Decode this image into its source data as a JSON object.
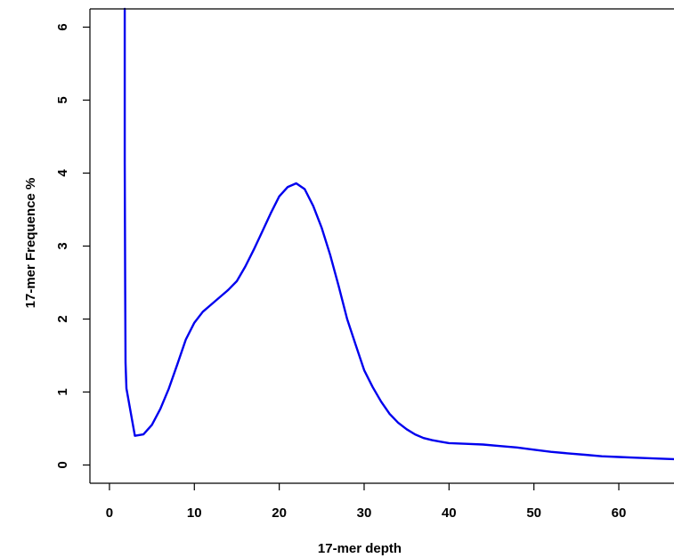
{
  "chart_data": {
    "type": "line",
    "title": "",
    "xlabel": "17-mer depth",
    "ylabel": "17-mer Frequence %",
    "xlim": [
      -2.3,
      66.5
    ],
    "ylim": [
      -0.25,
      6.25
    ],
    "xticks": [
      0,
      10,
      20,
      30,
      40,
      50,
      60
    ],
    "yticks": [
      0,
      1,
      2,
      3,
      4,
      5,
      6
    ],
    "grid": false,
    "legend": "none",
    "line_color": "#0000ee",
    "series": [
      {
        "x": [
          1.8,
          1.8,
          1.85,
          1.9,
          2.0,
          3.0,
          4.0,
          5,
          6,
          7,
          8,
          9,
          10,
          11,
          12,
          13,
          14,
          15,
          16,
          17,
          18,
          19,
          20,
          21,
          22,
          23,
          24,
          25,
          26,
          27,
          28,
          29,
          30,
          31,
          32,
          33,
          34,
          35,
          36,
          37,
          38,
          39,
          40,
          42,
          44,
          46,
          48,
          50,
          52,
          54,
          56,
          58,
          60,
          62,
          64,
          66.5
        ],
        "y": [
          6.25,
          4.15,
          2.4,
          1.4,
          1.05,
          0.4,
          0.42,
          0.55,
          0.77,
          1.05,
          1.38,
          1.72,
          1.95,
          2.1,
          2.2,
          2.3,
          2.4,
          2.52,
          2.72,
          2.95,
          3.2,
          3.45,
          3.68,
          3.81,
          3.86,
          3.78,
          3.55,
          3.25,
          2.88,
          2.45,
          2.0,
          1.65,
          1.3,
          1.07,
          0.87,
          0.7,
          0.58,
          0.49,
          0.42,
          0.37,
          0.34,
          0.32,
          0.3,
          0.29,
          0.28,
          0.26,
          0.24,
          0.21,
          0.18,
          0.16,
          0.14,
          0.12,
          0.11,
          0.1,
          0.09,
          0.08
        ]
      }
    ]
  }
}
